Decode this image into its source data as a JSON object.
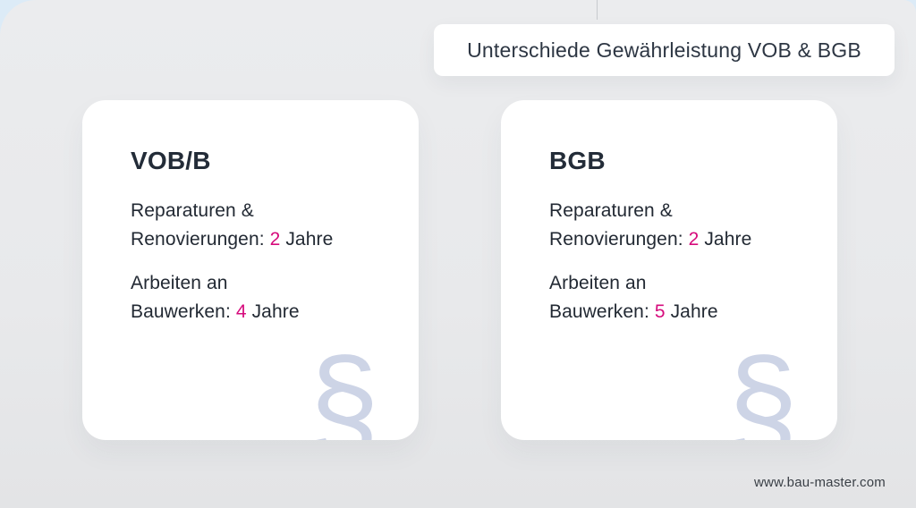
{
  "header": {
    "title": "Unterschiede Gewährleistung VOB & BGB"
  },
  "cards": [
    {
      "heading": "VOB/B",
      "items": [
        {
          "line1": "Reparaturen &",
          "line2": "Renovierungen:",
          "value": "2",
          "unit": "Jahre"
        },
        {
          "line1": "Arbeiten an",
          "line2": "Bauwerken:",
          "value": "4",
          "unit": "Jahre"
        }
      ],
      "symbol": "§"
    },
    {
      "heading": "BGB",
      "items": [
        {
          "line1": "Reparaturen &",
          "line2": "Renovierungen:",
          "value": "2",
          "unit": "Jahre"
        },
        {
          "line1": "Arbeiten an",
          "line2": "Bauwerken:",
          "value": "5",
          "unit": "Jahre"
        }
      ],
      "symbol": "§"
    }
  ],
  "footer": {
    "website": "www.bau-master.com"
  },
  "colors": {
    "accent": "#d60b7c",
    "heading": "#232c38",
    "body_text": "#222933",
    "symbol": "#cdd4e6",
    "card_bg": "#ffffff",
    "canvas_bg": "#e9eaec",
    "page_bg": "#dcebf7"
  }
}
